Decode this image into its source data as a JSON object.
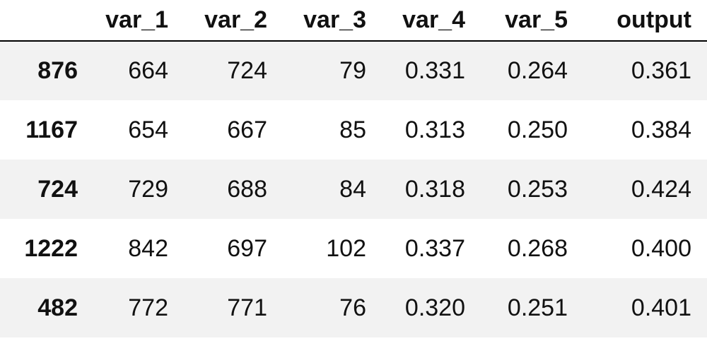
{
  "table": {
    "columns": [
      "",
      "var_1",
      "var_2",
      "var_3",
      "var_4",
      "var_5",
      "output"
    ],
    "rows": [
      {
        "index": "876",
        "cells": [
          "664",
          "724",
          "79",
          "0.331",
          "0.264",
          "0.361"
        ]
      },
      {
        "index": "1167",
        "cells": [
          "654",
          "667",
          "85",
          "0.313",
          "0.250",
          "0.384"
        ]
      },
      {
        "index": "724",
        "cells": [
          "729",
          "688",
          "84",
          "0.318",
          "0.253",
          "0.424"
        ]
      },
      {
        "index": "1222",
        "cells": [
          "842",
          "697",
          "102",
          "0.337",
          "0.268",
          "0.400"
        ]
      },
      {
        "index": "482",
        "cells": [
          "772",
          "771",
          "76",
          "0.320",
          "0.251",
          "0.401"
        ]
      }
    ]
  },
  "colors": {
    "stripe": "#f2f2f2",
    "header_rule": "#000000",
    "text": "#111111"
  }
}
